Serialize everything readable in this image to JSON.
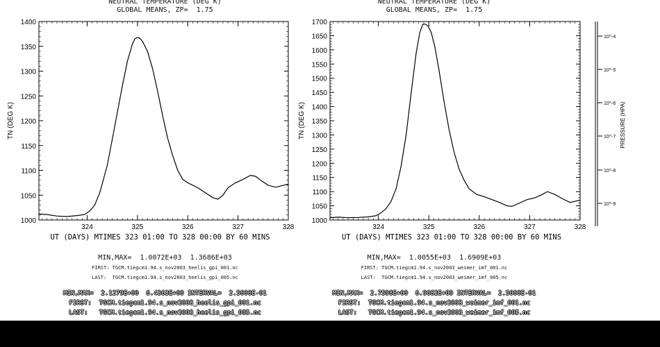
{
  "panels": [
    {
      "title_line1": "NEUTRAL TEMPERATURE (DEG K)",
      "title_line2": "GLOBAL MEANS, ZP=  1.75",
      "ylabel": "TN (DEG K)",
      "xlabel_line": "UT (DAYS) MTIMES 323 01:00 TO 328 00:00 BY    60 MINS",
      "minmax": "MIN,MAX=  1.0072E+03  1.3686E+03",
      "first_file": "FIRST: TGCM.tiegcm1.94.s_nov2003_heelis_gpi_001.nc",
      "last_file": "LAST:  TGCM.tiegcm1.94.s_nov2003_heelis_gpi_005.nc",
      "ghost_minmax": "MIN,MAX=  2.1279E+00  6.4363E+00 INTERVAL=  2.5000E-01",
      "ghost_first": "FIRST:  TGCM.tiegcm1.94.s_nov2003_heelis_gpi_001.nc",
      "ghost_last": "LAST:   TGCM.tiegcm1.94.s_nov2003_heelis_gpi_005.nc"
    },
    {
      "title_line1": "NEUTRAL TEMPERATURE (DEG K)",
      "title_line2": "GLOBAL MEANS, ZP=  1.75",
      "ylabel": "TN (DEG K)",
      "xlabel_line": "UT (DAYS) MTIMES 323 01:00 TO 328 00:00 BY    60 MINS",
      "minmax": "MIN,MAX=  1.0055E+03  1.6909E+03",
      "first_file": "FIRST: TGCM.tiegcm1.94.s_nov2003_weimer_imf_001.nc",
      "last_file": "LAST:  TGCM.tiegcm1.94.s_nov2003_weimer_imf_005.nc",
      "ghost_minmax": "MIN,MAX=  2.7598E+00  6.9682E+00 INTERVAL=  2.5000E-01",
      "ghost_first": "FIRST:  TGCM.tiegcm1.94.s_nov2003_weimer_imf_001.nc",
      "ghost_last": "LAST:   TGCM.tiegcm1.94.s_nov2003_weimer_imf_005.nc"
    }
  ],
  "side_axis": {
    "ticks": [
      "10^-9",
      "10^-8",
      "10^-7",
      "10^-6",
      "10^-5",
      "10^-4"
    ],
    "label": "PRESSURE (HPA)"
  },
  "chart_data": [
    {
      "type": "line",
      "title": "NEUTRAL TEMPERATURE (DEG K)",
      "subtitle": "GLOBAL MEANS, ZP=  1.75",
      "xlabel": "UT (DAYS)",
      "ylabel": "TN (DEG K)",
      "xlim": [
        323.04,
        328.0
      ],
      "ylim": [
        1000,
        1400
      ],
      "xticks": [
        324,
        325,
        326,
        327,
        328
      ],
      "yticks": [
        1000,
        1050,
        1100,
        1150,
        1200,
        1250,
        1300,
        1350,
        1400
      ],
      "x": [
        323.04,
        323.2,
        323.4,
        323.6,
        323.8,
        323.95,
        324.05,
        324.15,
        324.25,
        324.4,
        324.55,
        324.7,
        324.8,
        324.9,
        324.95,
        325.0,
        325.05,
        325.1,
        325.2,
        325.3,
        325.4,
        325.5,
        325.6,
        325.7,
        325.8,
        325.9,
        326.0,
        326.1,
        326.2,
        326.35,
        326.5,
        326.6,
        326.7,
        326.8,
        326.95,
        327.1,
        327.25,
        327.35,
        327.45,
        327.6,
        327.75,
        327.9,
        328.0
      ],
      "y": [
        1012,
        1011,
        1008,
        1007,
        1009,
        1011,
        1018,
        1030,
        1055,
        1110,
        1190,
        1270,
        1320,
        1355,
        1365,
        1368,
        1366,
        1360,
        1340,
        1305,
        1260,
        1210,
        1165,
        1130,
        1100,
        1082,
        1075,
        1070,
        1065,
        1055,
        1045,
        1042,
        1050,
        1065,
        1075,
        1082,
        1090,
        1088,
        1080,
        1070,
        1066,
        1070,
        1072
      ]
    },
    {
      "type": "line",
      "title": "NEUTRAL TEMPERATURE (DEG K)",
      "subtitle": "GLOBAL MEANS, ZP=  1.75",
      "xlabel": "UT (DAYS)",
      "ylabel": "TN (DEG K)",
      "xlim": [
        323.04,
        328.0
      ],
      "ylim": [
        1000,
        1700
      ],
      "xticks": [
        324,
        325,
        326,
        327,
        328
      ],
      "yticks": [
        1000,
        1050,
        1100,
        1150,
        1200,
        1250,
        1300,
        1350,
        1400,
        1450,
        1500,
        1550,
        1600,
        1650,
        1700
      ],
      "x": [
        323.04,
        323.2,
        323.4,
        323.6,
        323.8,
        323.95,
        324.05,
        324.15,
        324.25,
        324.35,
        324.45,
        324.55,
        324.65,
        324.75,
        324.82,
        324.88,
        324.93,
        324.98,
        325.05,
        325.12,
        325.2,
        325.3,
        325.4,
        325.5,
        325.6,
        325.7,
        325.8,
        325.95,
        326.1,
        326.25,
        326.4,
        326.55,
        326.65,
        326.8,
        326.95,
        327.1,
        327.25,
        327.35,
        327.5,
        327.65,
        327.8,
        327.95,
        328.0
      ],
      "y": [
        1008,
        1010,
        1008,
        1009,
        1011,
        1015,
        1025,
        1040,
        1065,
        1110,
        1190,
        1300,
        1450,
        1590,
        1660,
        1690,
        1691,
        1685,
        1660,
        1610,
        1530,
        1420,
        1320,
        1240,
        1180,
        1140,
        1110,
        1090,
        1082,
        1072,
        1062,
        1050,
        1048,
        1060,
        1072,
        1078,
        1090,
        1100,
        1090,
        1075,
        1062,
        1068,
        1070
      ]
    }
  ]
}
